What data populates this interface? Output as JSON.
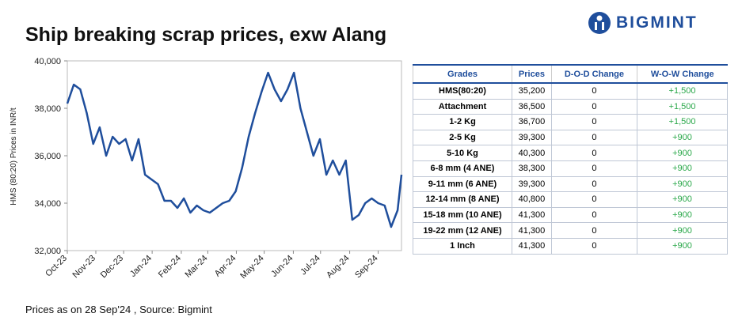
{
  "title": "Ship breaking scrap prices, exw Alang",
  "logo": "BIGMINT",
  "footnote": "Prices as on 28 Sep'24 , Source: Bigmint",
  "chart_data": {
    "type": "line",
    "y_label": "HMS (80:20) Prices in INR/t",
    "x": [
      0,
      1,
      2,
      3,
      4,
      5,
      6,
      7,
      8,
      9,
      10,
      11,
      12,
      13,
      14,
      15,
      16,
      17,
      18,
      19,
      20,
      21,
      22,
      23,
      24,
      25,
      26,
      27,
      28,
      29,
      30,
      31,
      32,
      33,
      34,
      35,
      36,
      37,
      38,
      39,
      40,
      41,
      42,
      43,
      44,
      45,
      46,
      47,
      48,
      49,
      50,
      51,
      51.6
    ],
    "values": [
      38200,
      39000,
      38800,
      37800,
      36500,
      37200,
      36000,
      36800,
      36500,
      36700,
      35800,
      36700,
      35200,
      35000,
      34800,
      34100,
      34100,
      33800,
      34200,
      33600,
      33900,
      33700,
      33600,
      33800,
      34000,
      34100,
      34500,
      35500,
      36800,
      37800,
      38700,
      39500,
      38800,
      38300,
      38800,
      39500,
      38000,
      37000,
      36000,
      36700,
      35200,
      35800,
      35200,
      35800,
      33300,
      33500,
      34000,
      34200,
      34000,
      33900,
      33000,
      33700,
      35200
    ],
    "color": "#1f4e9c",
    "xlim": [
      0,
      51.6
    ],
    "xticks": [
      {
        "value": 0,
        "label": "Oct-23"
      },
      {
        "value": 4.4,
        "label": "Nov-23"
      },
      {
        "value": 8.7,
        "label": "Dec-23"
      },
      {
        "value": 13.1,
        "label": "Jan-24"
      },
      {
        "value": 17.6,
        "label": "Feb-24"
      },
      {
        "value": 21.7,
        "label": "Mar-24"
      },
      {
        "value": 26.1,
        "label": "Apr-24"
      },
      {
        "value": 30.4,
        "label": "May-24"
      },
      {
        "value": 34.9,
        "label": "Jun-24"
      },
      {
        "value": 39.1,
        "label": "Jul-24"
      },
      {
        "value": 43.6,
        "label": "Aug-24"
      },
      {
        "value": 48.0,
        "label": "Sep-24"
      }
    ],
    "ylim": [
      32000,
      40000
    ],
    "yticks": [
      {
        "value": 32000,
        "label": "32,000"
      },
      {
        "value": 34000,
        "label": "34,000"
      },
      {
        "value": 36000,
        "label": "36,000"
      },
      {
        "value": 38000,
        "label": "38,000"
      },
      {
        "value": 40000,
        "label": "40,000"
      }
    ]
  },
  "table": {
    "header": [
      "Grades",
      "Prices",
      "D-O-D Change",
      "W-O-W Change"
    ],
    "rows": [
      [
        "HMS(80:20)",
        "35,200",
        "0",
        "+1,500"
      ],
      [
        "Attachment",
        "36,500",
        "0",
        "+1,500"
      ],
      [
        "1-2 Kg",
        "36,700",
        "0",
        "+1,500"
      ],
      [
        "2-5 Kg",
        "39,300",
        "0",
        "+900"
      ],
      [
        "5-10 Kg",
        "40,300",
        "0",
        "+900"
      ],
      [
        "6-8 mm (4 ANE)",
        "38,300",
        "0",
        "+900"
      ],
      [
        "9-11 mm (6 ANE)",
        "39,300",
        "0",
        "+900"
      ],
      [
        "12-14 mm (8 ANE)",
        "40,800",
        "0",
        "+900"
      ],
      [
        "15-18 mm (10 ANE)",
        "41,300",
        "0",
        "+900"
      ],
      [
        "19-22 mm (12 ANE)",
        "41,300",
        "0",
        "+900"
      ],
      [
        "1 Inch",
        "41,300",
        "0",
        "+900"
      ]
    ]
  }
}
